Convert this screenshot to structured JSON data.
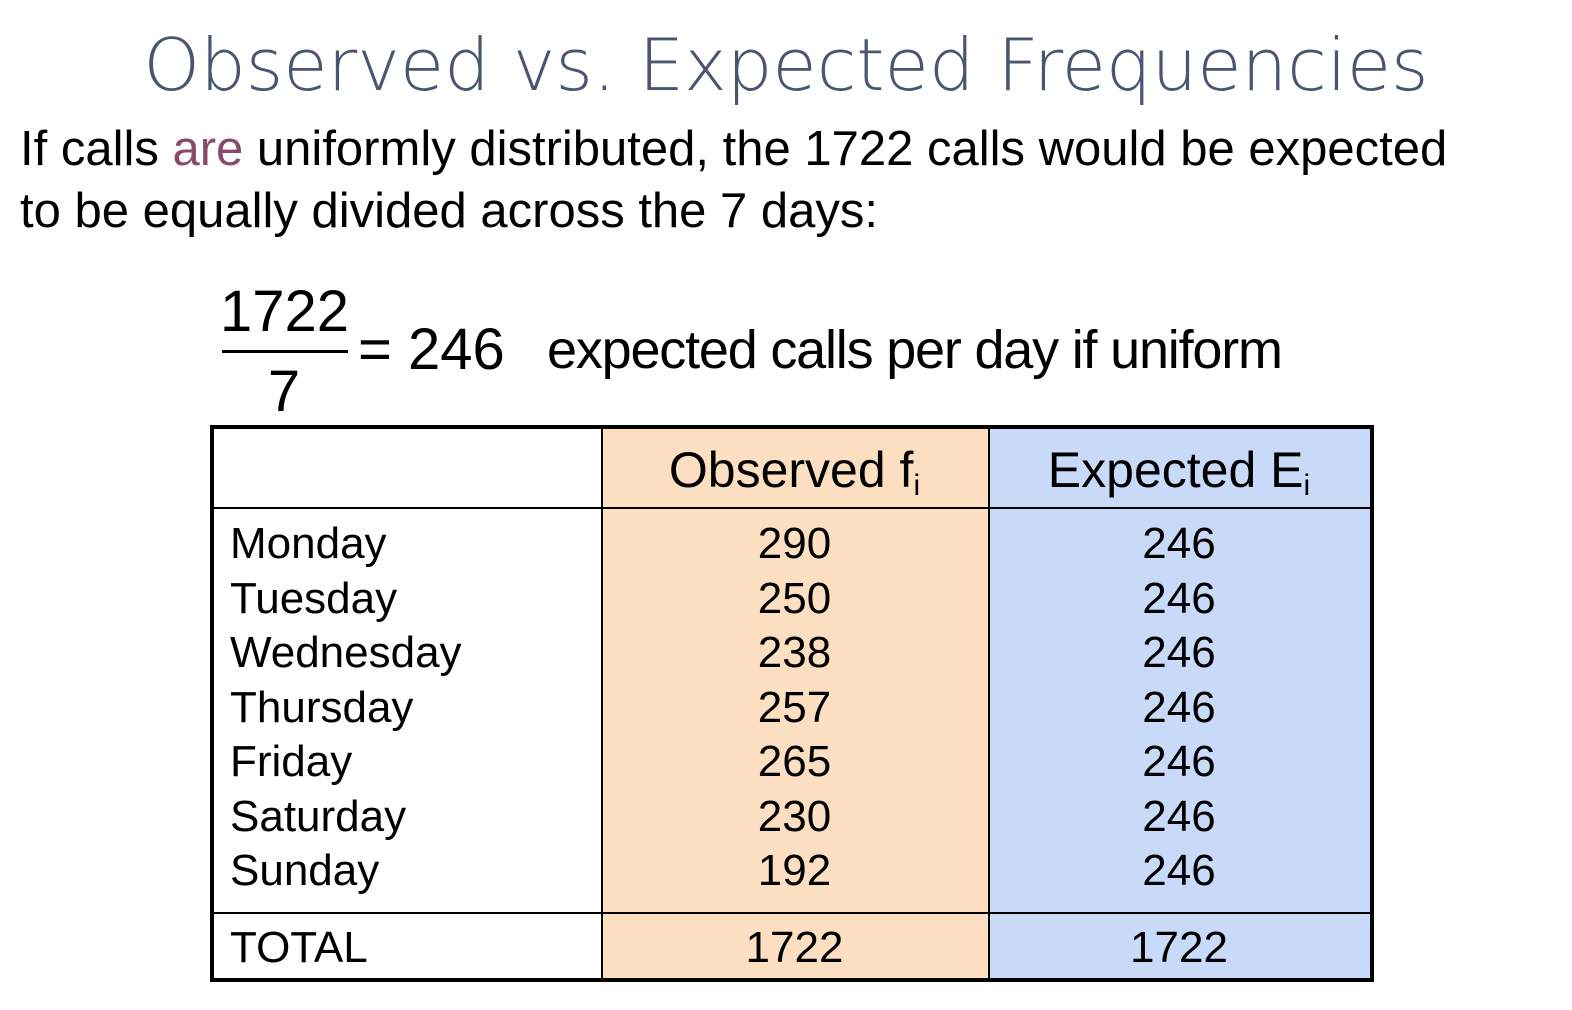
{
  "title": "Observed vs. Expected Frequencies",
  "intro": {
    "part1": "If calls ",
    "highlight": "are",
    "part2": " uniformly distributed, the 1722 calls would be expected",
    "line2": "to be equally divided across the 7 days:",
    "highlight_color": "#8b4a6b"
  },
  "formula": {
    "numerator": "1722",
    "denominator": "7",
    "equals": "=",
    "result": "246",
    "description": "expected calls per day if uniform"
  },
  "table": {
    "headers": {
      "day": "",
      "observed": "Observed f",
      "observed_sub": "i",
      "expected": "Expected E",
      "expected_sub": "i"
    },
    "rows": [
      {
        "day": "Monday",
        "observed": "290",
        "expected": "246"
      },
      {
        "day": "Tuesday",
        "observed": "250",
        "expected": "246"
      },
      {
        "day": "Wednesday",
        "observed": "238",
        "expected": "246"
      },
      {
        "day": "Thursday",
        "observed": "257",
        "expected": "246"
      },
      {
        "day": "Friday",
        "observed": "265",
        "expected": "246"
      },
      {
        "day": "Saturday",
        "observed": "230",
        "expected": "246"
      },
      {
        "day": "Sunday",
        "observed": "192",
        "expected": "246"
      }
    ],
    "total": {
      "label": "TOTAL",
      "observed": "1722",
      "expected": "1722"
    },
    "colors": {
      "observed_bg": "#fcdfc0",
      "expected_bg": "#c9daf8"
    }
  }
}
